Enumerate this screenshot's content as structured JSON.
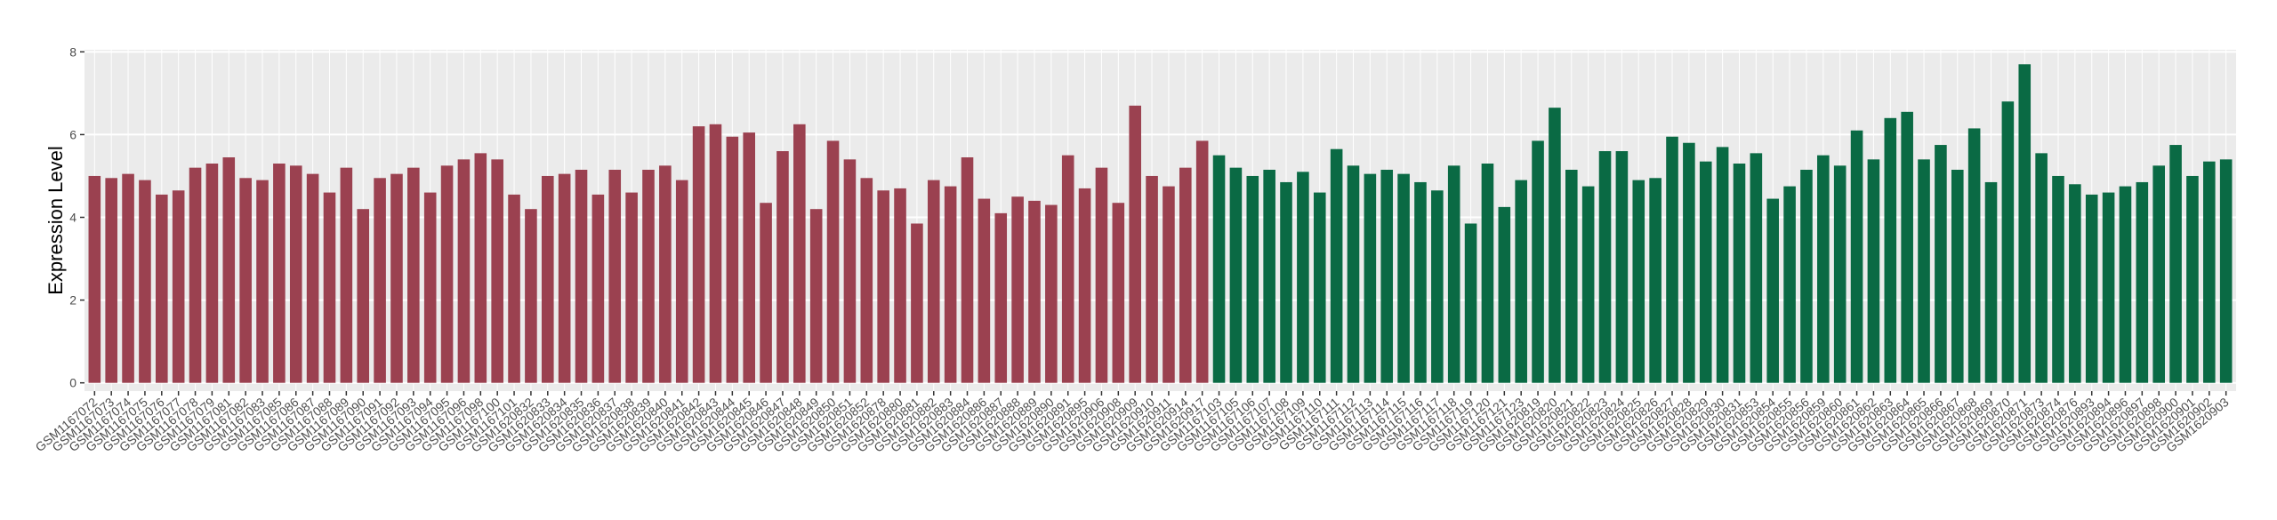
{
  "chart_data": {
    "type": "bar",
    "y_label": "Expression Level",
    "categories": [
      "GSM1167072",
      "GSM1167073",
      "GSM1167074",
      "GSM1167075",
      "GSM1167076",
      "GSM1167077",
      "GSM1167078",
      "GSM1167079",
      "GSM1167081",
      "GSM1167082",
      "GSM1167083",
      "GSM1167085",
      "GSM1167086",
      "GSM1167087",
      "GSM1167088",
      "GSM1167089",
      "GSM1167090",
      "GSM1167091",
      "GSM1167092",
      "GSM1167093",
      "GSM1167094",
      "GSM1167095",
      "GSM1167096",
      "GSM1167098",
      "GSM1167100",
      "GSM1167101",
      "GSM1620832",
      "GSM1620833",
      "GSM1620834",
      "GSM1620835",
      "GSM1620836",
      "GSM1620837",
      "GSM1620838",
      "GSM1620839",
      "GSM1620840",
      "GSM1620841",
      "GSM1620842",
      "GSM1620843",
      "GSM1620844",
      "GSM1620845",
      "GSM1620846",
      "GSM1620847",
      "GSM1620848",
      "GSM1620849",
      "GSM1620850",
      "GSM1620851",
      "GSM1620852",
      "GSM1620878",
      "GSM1620880",
      "GSM1620881",
      "GSM1620882",
      "GSM1620883",
      "GSM1620884",
      "GSM1620886",
      "GSM1620887",
      "GSM1620888",
      "GSM1620889",
      "GSM1620890",
      "GSM1620891",
      "GSM1620895",
      "GSM1620906",
      "GSM1620908",
      "GSM1620909",
      "GSM1620910",
      "GSM1620911",
      "GSM1620914",
      "GSM1620917",
      "GSM1167103",
      "GSM1167105",
      "GSM1167106",
      "GSM1167107",
      "GSM1167108",
      "GSM1167109",
      "GSM1167110",
      "GSM1167111",
      "GSM1167112",
      "GSM1167113",
      "GSM1167114",
      "GSM1167115",
      "GSM1167116",
      "GSM1167117",
      "GSM1167118",
      "GSM1167119",
      "GSM1167120",
      "GSM1167121",
      "GSM1167123",
      "GSM1620819",
      "GSM1620820",
      "GSM1620821",
      "GSM1620822",
      "GSM1620823",
      "GSM1620824",
      "GSM1620825",
      "GSM1620826",
      "GSM1620827",
      "GSM1620828",
      "GSM1620829",
      "GSM1620830",
      "GSM1620831",
      "GSM1620853",
      "GSM1620854",
      "GSM1620855",
      "GSM1620856",
      "GSM1620859",
      "GSM1620860",
      "GSM1620861",
      "GSM1620862",
      "GSM1620863",
      "GSM1620864",
      "GSM1620865",
      "GSM1620866",
      "GSM1620867",
      "GSM1620868",
      "GSM1620869",
      "GSM1620870",
      "GSM1620871",
      "GSM1620873",
      "GSM1620874",
      "GSM1620876",
      "GSM1620893",
      "GSM1620894",
      "GSM1620896",
      "GSM1620897",
      "GSM1620898",
      "GSM1620900",
      "GSM1620901",
      "GSM1620902",
      "GSM1620903"
    ],
    "series": [
      {
        "color": "#9b4150",
        "values": [
          5.0,
          4.95,
          5.05,
          4.9,
          4.55,
          4.65,
          5.2,
          5.3,
          5.45,
          4.95,
          4.9,
          5.3,
          5.25,
          5.05,
          4.6,
          5.2,
          4.2,
          4.95,
          5.05,
          5.2,
          4.6,
          5.25,
          5.4,
          5.55,
          5.4,
          4.55,
          4.2,
          5.0,
          5.05,
          5.15,
          4.55,
          5.15,
          4.6,
          5.15,
          5.25,
          4.9,
          6.2,
          6.25,
          5.95,
          6.05,
          4.35,
          5.6,
          6.25,
          4.2,
          5.85,
          5.4,
          4.95,
          4.65,
          4.7,
          3.85,
          4.9,
          4.75,
          5.45,
          4.45,
          4.1,
          4.5,
          4.4,
          4.3,
          5.5,
          4.7,
          5.2,
          4.35,
          6.7,
          5.0,
          4.75,
          5.2,
          5.85,
          null,
          null,
          null,
          null,
          null,
          null,
          null,
          null,
          null,
          null,
          null,
          null,
          null,
          null,
          null,
          null,
          null,
          null,
          null,
          null,
          null,
          null,
          null,
          null,
          null,
          null,
          null,
          null,
          null,
          null,
          null,
          null,
          null,
          null,
          null,
          null,
          null,
          null,
          null,
          null,
          null,
          null,
          null,
          null,
          null,
          null,
          null,
          null,
          null,
          null,
          null,
          null,
          null,
          null,
          null,
          null,
          null,
          null,
          null,
          null,
          null
        ]
      },
      {
        "color": "#0a6a44",
        "values": [
          null,
          null,
          null,
          null,
          null,
          null,
          null,
          null,
          null,
          null,
          null,
          null,
          null,
          null,
          null,
          null,
          null,
          null,
          null,
          null,
          null,
          null,
          null,
          null,
          null,
          null,
          null,
          null,
          null,
          null,
          null,
          null,
          null,
          null,
          null,
          null,
          null,
          null,
          null,
          null,
          null,
          null,
          null,
          null,
          null,
          null,
          null,
          null,
          null,
          null,
          null,
          null,
          null,
          null,
          null,
          null,
          null,
          null,
          null,
          null,
          null,
          null,
          null,
          null,
          null,
          null,
          null,
          5.5,
          5.2,
          5.0,
          5.15,
          4.85,
          5.1,
          4.6,
          5.65,
          5.25,
          5.05,
          5.15,
          5.05,
          4.85,
          4.65,
          5.25,
          3.85,
          5.3,
          4.25,
          4.9,
          5.85,
          6.65,
          5.15,
          4.75,
          5.6,
          5.6,
          4.9,
          4.95,
          5.95,
          5.8,
          5.35,
          5.7,
          5.3,
          5.55,
          4.45,
          4.75,
          5.15,
          5.5,
          5.25,
          6.1,
          5.4,
          6.4,
          6.55,
          5.4,
          5.75,
          5.15,
          6.15,
          4.85,
          6.8,
          7.7,
          5.55,
          5.0,
          4.8,
          4.55,
          4.6,
          4.75,
          4.85,
          5.25,
          5.75,
          5.0,
          5.35,
          5.4
        ]
      }
    ],
    "ylim": [
      -0.2,
      8.05
    ],
    "yticks": [
      0,
      2,
      4,
      6,
      8
    ],
    "grid": true
  }
}
